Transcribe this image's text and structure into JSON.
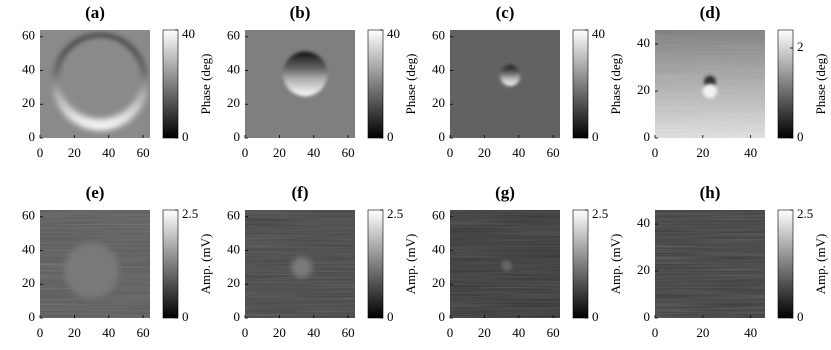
{
  "chart_data": [
    {
      "type": "heatmap",
      "title": "(a)",
      "xlim": [
        0,
        64
      ],
      "ylim": [
        0,
        64
      ],
      "xticks": [
        0,
        20,
        40,
        60
      ],
      "yticks": [
        0,
        20,
        40,
        60
      ],
      "colorbar_label": "Phase (deg)",
      "clim": [
        0,
        40
      ],
      "cticks": [
        0,
        40
      ]
    },
    {
      "type": "heatmap",
      "title": "(b)",
      "xlim": [
        0,
        64
      ],
      "ylim": [
        0,
        64
      ],
      "xticks": [
        0,
        20,
        40,
        60
      ],
      "yticks": [
        0,
        20,
        40,
        60
      ],
      "colorbar_label": "Phase (deg)",
      "clim": [
        0,
        40
      ],
      "cticks": [
        0,
        40
      ]
    },
    {
      "type": "heatmap",
      "title": "(c)",
      "xlim": [
        0,
        64
      ],
      "ylim": [
        0,
        64
      ],
      "xticks": [
        0,
        20,
        40,
        60
      ],
      "yticks": [
        0,
        20,
        40,
        60
      ],
      "colorbar_label": "Phase (deg)",
      "clim": [
        0,
        40
      ],
      "cticks": [
        0,
        40
      ]
    },
    {
      "type": "heatmap",
      "title": "(d)",
      "xlim": [
        0,
        46
      ],
      "ylim": [
        0,
        46
      ],
      "xticks": [
        0,
        20,
        40
      ],
      "yticks": [
        0,
        20,
        40
      ],
      "colorbar_label": "Phase (deg)",
      "clim": [
        0,
        2.4
      ],
      "cticks": [
        0,
        2
      ]
    },
    {
      "type": "heatmap",
      "title": "(e)",
      "xlim": [
        0,
        64
      ],
      "ylim": [
        0,
        64
      ],
      "xticks": [
        0,
        20,
        40,
        60
      ],
      "yticks": [
        0,
        20,
        40,
        60
      ],
      "colorbar_label": "Amp. (mV)",
      "clim": [
        0,
        2.5
      ],
      "cticks": [
        0,
        2.5
      ]
    },
    {
      "type": "heatmap",
      "title": "(f)",
      "xlim": [
        0,
        64
      ],
      "ylim": [
        0,
        64
      ],
      "xticks": [
        0,
        20,
        40,
        60
      ],
      "yticks": [
        0,
        20,
        40,
        60
      ],
      "colorbar_label": "Amp. (mV)",
      "clim": [
        0,
        2.5
      ],
      "cticks": [
        0,
        2.5
      ]
    },
    {
      "type": "heatmap",
      "title": "(g)",
      "xlim": [
        0,
        64
      ],
      "ylim": [
        0,
        64
      ],
      "xticks": [
        0,
        20,
        40,
        60
      ],
      "yticks": [
        0,
        20,
        40,
        60
      ],
      "colorbar_label": "Amp. (mV)",
      "clim": [
        0,
        2.5
      ],
      "cticks": [
        0,
        2.5
      ]
    },
    {
      "type": "heatmap",
      "title": "(h)",
      "xlim": [
        0,
        46
      ],
      "ylim": [
        0,
        46
      ],
      "xticks": [
        0,
        20,
        40
      ],
      "yticks": [
        0,
        20,
        40
      ],
      "colorbar_label": "Amp. (mV)",
      "clim": [
        0,
        2.5
      ],
      "cticks": [
        0,
        2.5
      ]
    }
  ]
}
